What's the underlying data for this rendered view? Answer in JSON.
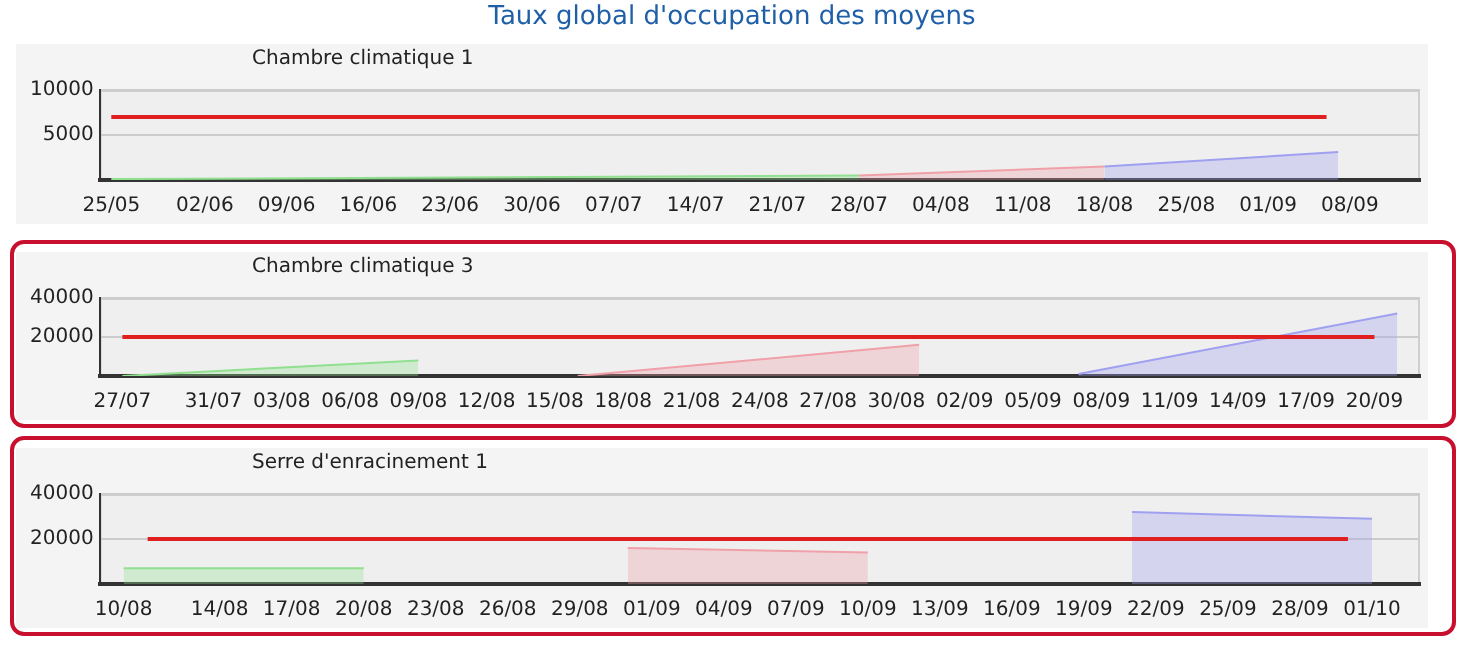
{
  "chart_data": [
    {
      "type": "area",
      "title": "Taux global d'occupation des moyens",
      "subtitle": "Chambre climatique 1",
      "xlim": [
        "--05-24",
        "--09-14"
      ],
      "xticks": [
        {
          "value": "--05-25",
          "label": "25/05"
        },
        {
          "value": "--06-02",
          "label": "02/06"
        },
        {
          "value": "--06-09",
          "label": "09/06"
        },
        {
          "value": "--06-16",
          "label": "16/06"
        },
        {
          "value": "--06-23",
          "label": "23/06"
        },
        {
          "value": "--06-30",
          "label": "30/06"
        },
        {
          "value": "--07-07",
          "label": "07/07"
        },
        {
          "value": "--07-14",
          "label": "14/07"
        },
        {
          "value": "--07-21",
          "label": "21/07"
        },
        {
          "value": "--07-28",
          "label": "28/07"
        },
        {
          "value": "--08-04",
          "label": "04/08"
        },
        {
          "value": "--08-11",
          "label": "11/08"
        },
        {
          "value": "--08-18",
          "label": "18/08"
        },
        {
          "value": "--08-25",
          "label": "25/08"
        },
        {
          "value": "--09-01",
          "label": "01/09"
        },
        {
          "value": "--09-08",
          "label": "08/09"
        }
      ],
      "ylim": [
        0,
        10000
      ],
      "yticks": [
        5000,
        10000
      ],
      "grid": "y",
      "marker": "none",
      "series": [
        {
          "color": "#90e090",
          "x": [
            "--05-25",
            "--07-28"
          ],
          "values": [
            100,
            500
          ]
        },
        {
          "color": "#f0a0a8",
          "x": [
            "--07-28",
            "--08-18"
          ],
          "values": [
            500,
            1500
          ]
        },
        {
          "color": "#a0a0f0",
          "x": [
            "--08-18",
            "--09-07"
          ],
          "values": [
            1500,
            3100
          ]
        },
        {
          "type": "line",
          "color": "#e02020",
          "x": [
            "--05-25",
            "--09-06"
          ],
          "values": [
            7000,
            7000
          ]
        }
      ]
    },
    {
      "type": "area",
      "subtitle": "Chambre climatique 3",
      "xlim": [
        "--07-26",
        "--09-22"
      ],
      "xticks": [
        {
          "value": "--07-27",
          "label": "27/07"
        },
        {
          "value": "--07-31",
          "label": "31/07"
        },
        {
          "value": "--08-03",
          "label": "03/08"
        },
        {
          "value": "--08-06",
          "label": "06/08"
        },
        {
          "value": "--08-09",
          "label": "09/08"
        },
        {
          "value": "--08-12",
          "label": "12/08"
        },
        {
          "value": "--08-15",
          "label": "15/08"
        },
        {
          "value": "--08-18",
          "label": "18/08"
        },
        {
          "value": "--08-21",
          "label": "21/08"
        },
        {
          "value": "--08-24",
          "label": "24/08"
        },
        {
          "value": "--08-27",
          "label": "27/08"
        },
        {
          "value": "--08-30",
          "label": "30/08"
        },
        {
          "value": "--09-02",
          "label": "02/09"
        },
        {
          "value": "--09-05",
          "label": "05/09"
        },
        {
          "value": "--09-08",
          "label": "08/09"
        },
        {
          "value": "--09-11",
          "label": "11/09"
        },
        {
          "value": "--09-14",
          "label": "14/09"
        },
        {
          "value": "--09-17",
          "label": "17/09"
        },
        {
          "value": "--09-20",
          "label": "20/09"
        }
      ],
      "ylim": [
        0,
        40000
      ],
      "yticks": [
        20000,
        40000
      ],
      "grid": "y",
      "marker": "none",
      "series": [
        {
          "color": "#90e090",
          "x": [
            "--07-27",
            "--08-09"
          ],
          "values": [
            0,
            8000
          ]
        },
        {
          "color": "#f0a0a8",
          "x": [
            "--08-16",
            "--08-31"
          ],
          "values": [
            0,
            16000
          ]
        },
        {
          "color": "#a0a0f0",
          "x": [
            "--09-07",
            "--09-21"
          ],
          "values": [
            1000,
            32000
          ]
        },
        {
          "type": "line",
          "color": "#e02020",
          "x": [
            "--07-27",
            "--09-20"
          ],
          "values": [
            20000,
            20000
          ]
        }
      ]
    },
    {
      "type": "area",
      "subtitle": "Serre d'enracinement 1",
      "xlim": [
        "--08-09",
        "--10-03"
      ],
      "xticks": [
        {
          "value": "--08-10",
          "label": "10/08"
        },
        {
          "value": "--08-14",
          "label": "14/08"
        },
        {
          "value": "--08-17",
          "label": "17/08"
        },
        {
          "value": "--08-20",
          "label": "20/08"
        },
        {
          "value": "--08-23",
          "label": "23/08"
        },
        {
          "value": "--08-26",
          "label": "26/08"
        },
        {
          "value": "--08-29",
          "label": "29/08"
        },
        {
          "value": "--09-01",
          "label": "01/09"
        },
        {
          "value": "--09-04",
          "label": "04/09"
        },
        {
          "value": "--09-07",
          "label": "07/09"
        },
        {
          "value": "--09-10",
          "label": "10/09"
        },
        {
          "value": "--09-13",
          "label": "13/09"
        },
        {
          "value": "--09-16",
          "label": "16/09"
        },
        {
          "value": "--09-19",
          "label": "19/09"
        },
        {
          "value": "--09-22",
          "label": "22/09"
        },
        {
          "value": "--09-25",
          "label": "25/09"
        },
        {
          "value": "--09-28",
          "label": "28/09"
        },
        {
          "value": "--10-01",
          "label": "01/10"
        }
      ],
      "ylim": [
        0,
        40000
      ],
      "yticks": [
        20000,
        40000
      ],
      "grid": "y",
      "marker": "none",
      "series": [
        {
          "color": "#90e090",
          "x": [
            "--08-10",
            "--08-20"
          ],
          "values": [
            7000,
            7000
          ]
        },
        {
          "color": "#f0a0a8",
          "x": [
            "--08-31",
            "--09-10"
          ],
          "values": [
            16000,
            14000
          ]
        },
        {
          "color": "#a0a0f0",
          "x": [
            "--09-21",
            "--10-01"
          ],
          "values": [
            32000,
            29000
          ]
        },
        {
          "type": "line",
          "color": "#e02020",
          "x": [
            "--08-11",
            "--09-30"
          ],
          "values": [
            20000,
            20000
          ]
        }
      ]
    }
  ]
}
